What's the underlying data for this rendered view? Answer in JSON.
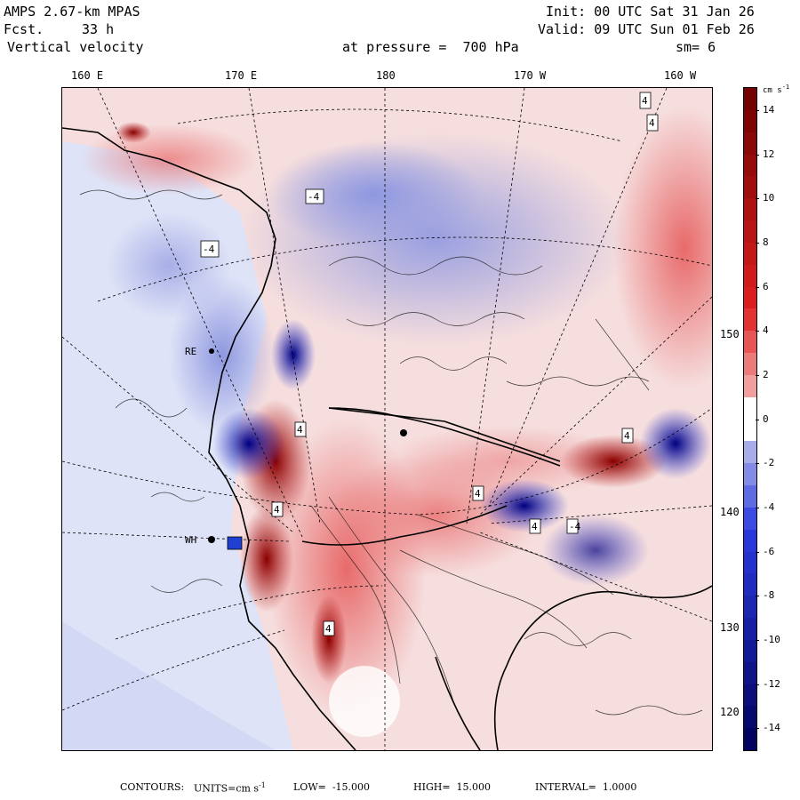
{
  "header": {
    "model": "AMPS 2.67-km MPAS",
    "fcst_label": "Fcst.",
    "fcst_value": "33 h",
    "field": "Vertical velocity",
    "init": "Init: 00 UTC Sat 31 Jan 26",
    "valid": "Valid: 09 UTC Sun 01 Feb 26",
    "level": "at pressure =  700 hPa",
    "smoothing": "sm= 6"
  },
  "longitude_labels": [
    "160 E",
    "170 E",
    "180",
    "170 W",
    "160 W"
  ],
  "latitude_labels": [
    "150 W",
    "140 W",
    "130 W",
    "120 W"
  ],
  "colorbar": {
    "units": "cm s",
    "units_exp": "-1",
    "labels": [
      "14",
      "12",
      "10",
      "8",
      "6",
      "4",
      "2",
      "0",
      "-2",
      "-4",
      "-6",
      "-8",
      "-10",
      "-12",
      "-14"
    ],
    "levels": [
      15,
      14,
      13,
      12,
      11,
      10,
      9,
      8,
      7,
      6,
      5,
      4,
      3,
      2,
      1,
      0,
      -1,
      -2,
      -3,
      -4,
      -5,
      -6,
      -7,
      -8,
      -9,
      -10,
      -11,
      -12,
      -13,
      -14,
      -15
    ],
    "colors": {
      "max_positive": "#6e0000",
      "mid_positive": "#e0201f",
      "low_positive": "#f2b0b0",
      "near_zero": "#ffffff",
      "low_negative": "#b7bce9",
      "mid_negative": "#2a3ae0",
      "max_negative": "#00005a"
    }
  },
  "map": {
    "station_labels": [
      "RE",
      "WH",
      "4",
      "-4"
    ],
    "contour_markers": [
      "4",
      "-4",
      "4",
      "4",
      "4",
      "4",
      "4",
      "4",
      "-4"
    ]
  },
  "footer": {
    "contours": "CONTOURS:",
    "units_label": "UNITS=cm s",
    "units_exp": "-1",
    "low": "LOW=  -15.000",
    "high": "HIGH=  15.000",
    "interval": "INTERVAL=  1.0000"
  }
}
